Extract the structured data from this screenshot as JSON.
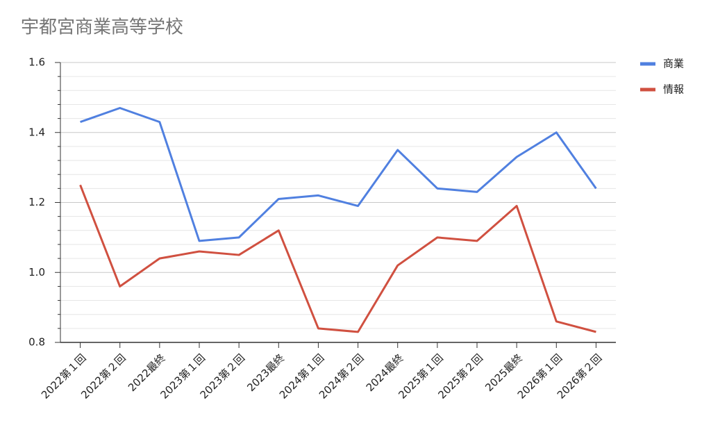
{
  "chart_data": {
    "type": "line",
    "title": "宇都宮商業高等学校",
    "categories": [
      "2022第１回",
      "2022第２回",
      "2022最終",
      "2023第１回",
      "2023第２回",
      "2023最終",
      "2024第１回",
      "2024第２回",
      "2024最終",
      "2025第１回",
      "2025第２回",
      "2025最終",
      "2026第１回",
      "2026第２回"
    ],
    "series": [
      {
        "name": "商業",
        "color": "#5080e0",
        "values": [
          1.43,
          1.47,
          1.43,
          1.09,
          1.1,
          1.21,
          1.22,
          1.19,
          1.35,
          1.24,
          1.23,
          1.33,
          1.4,
          1.24
        ]
      },
      {
        "name": "情報",
        "color": "#d05040",
        "values": [
          1.25,
          0.96,
          1.04,
          1.06,
          1.05,
          1.12,
          0.84,
          0.83,
          1.02,
          1.1,
          1.09,
          1.19,
          0.86,
          0.83
        ]
      }
    ],
    "ylim": [
      0.8,
      1.6
    ],
    "yticks": [
      0.8,
      {
        "value": 1,
        "label": "1.0"
      },
      1.2,
      1.4,
      1.6
    ],
    "grid": true,
    "minor_grid": true,
    "legend": "right"
  }
}
